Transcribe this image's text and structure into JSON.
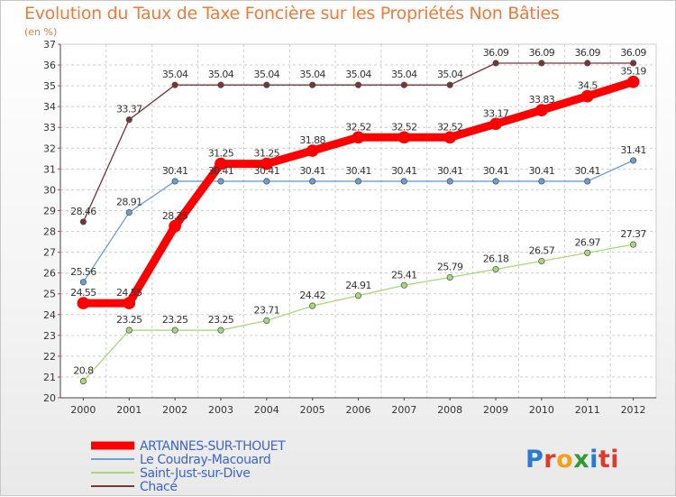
{
  "chart_data": {
    "type": "line",
    "title": "Evolution du Taux de Taxe Foncière sur les Propriétés Non Bâties",
    "subtitle": "(en %)",
    "x": [
      "2000",
      "2001",
      "2002",
      "2003",
      "2004",
      "2005",
      "2006",
      "2007",
      "2008",
      "2009",
      "2010",
      "2011",
      "2012"
    ],
    "ylim": [
      20,
      37
    ],
    "yticks": [
      20,
      21,
      22,
      23,
      24,
      25,
      26,
      27,
      28,
      29,
      30,
      31,
      32,
      33,
      34,
      35,
      36,
      37
    ],
    "series": [
      {
        "name": "ARTANNES-SUR-THOUET",
        "color": "#ff0000",
        "emphasis": true,
        "values": [
          24.55,
          24.55,
          28.25,
          31.25,
          31.25,
          31.88,
          32.52,
          32.52,
          32.52,
          33.17,
          33.83,
          34.5,
          35.19
        ],
        "labels": [
          "24.55",
          "24.55",
          "28.25",
          "31.25",
          "31.25",
          "31.88",
          "32.52",
          "32.52",
          "32.52",
          "33.17",
          "33.83",
          "34.5",
          "35.19"
        ]
      },
      {
        "name": "Le Coudray-Macouard",
        "color": "#6a9ed4",
        "emphasis": false,
        "values": [
          25.56,
          28.91,
          30.41,
          30.41,
          30.41,
          30.41,
          30.41,
          30.41,
          30.41,
          30.41,
          30.41,
          30.41,
          31.41
        ],
        "labels": [
          "25.56",
          "28.91",
          "30.41",
          "30.41",
          "30.41",
          "30.41",
          "30.41",
          "30.41",
          "30.41",
          "30.41",
          "30.41",
          "30.41",
          "31.41"
        ]
      },
      {
        "name": "Saint-Just-sur-Dive",
        "color": "#a6d97a",
        "emphasis": false,
        "values": [
          20.8,
          23.25,
          23.25,
          23.25,
          23.71,
          24.42,
          24.91,
          25.41,
          25.79,
          26.18,
          26.57,
          26.97,
          27.37
        ],
        "labels": [
          "20.8",
          "23.25",
          "23.25",
          "23.25",
          "23.71",
          "24.42",
          "24.91",
          "25.41",
          "25.79",
          "26.18",
          "26.57",
          "26.97",
          "27.37"
        ]
      },
      {
        "name": "Chacé",
        "color": "#7a3434",
        "emphasis": false,
        "values": [
          28.46,
          33.37,
          35.04,
          35.04,
          35.04,
          35.04,
          35.04,
          35.04,
          35.04,
          36.09,
          36.09,
          36.09,
          36.09
        ],
        "labels": [
          "28.46",
          "33.37",
          "35.04",
          "35.04",
          "35.04",
          "35.04",
          "35.04",
          "35.04",
          "35.04",
          "36.09",
          "36.09",
          "36.09",
          "36.09"
        ]
      }
    ],
    "legend": [
      "ARTANNES-SUR-THOUET",
      "Le Coudray-Macouard",
      "Saint-Just-sur-Dive",
      "Chacé"
    ],
    "grid": true,
    "legend_position": "bottom-left"
  },
  "brand": {
    "letters": [
      "P",
      "r",
      "o",
      "x",
      "i",
      "ti"
    ]
  },
  "colors": {
    "title": "#f07a3a",
    "axis": "#444444",
    "grid": "#cccccc"
  }
}
